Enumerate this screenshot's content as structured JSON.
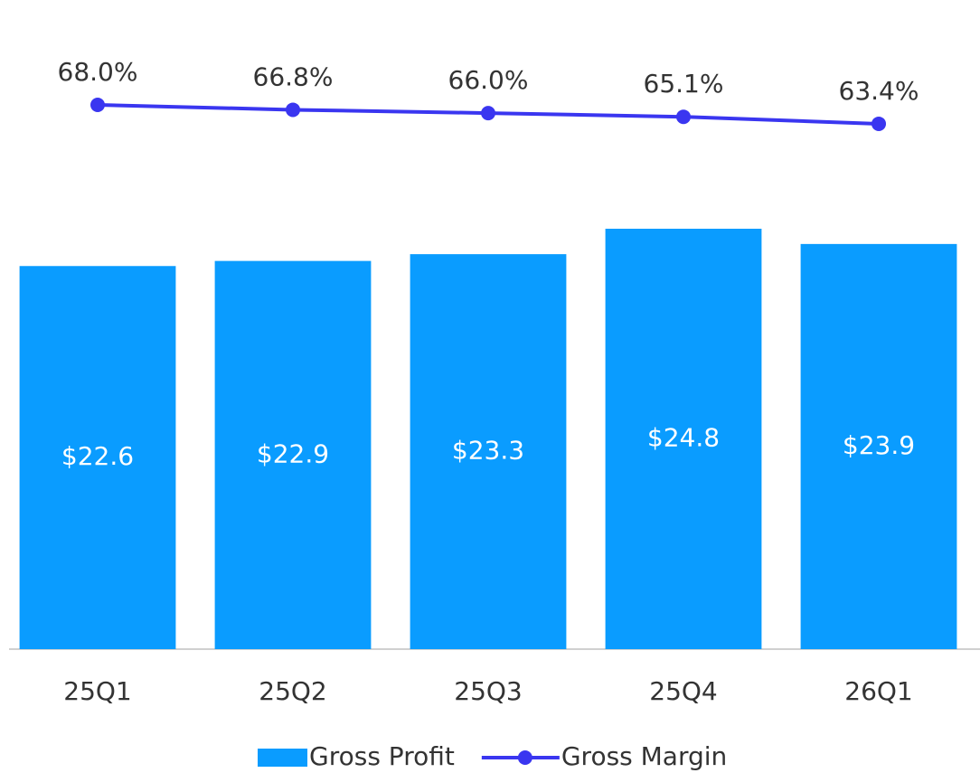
{
  "chart_data": {
    "type": "bar+line",
    "categories": [
      "25Q1",
      "25Q2",
      "25Q3",
      "25Q4",
      "26Q1"
    ],
    "series": [
      {
        "name": "Gross Profit",
        "type": "bar",
        "color": "#0a9cff",
        "values": [
          22.6,
          22.9,
          23.3,
          24.8,
          23.9
        ],
        "value_labels": [
          "$22.6",
          "$22.9",
          "$23.3",
          "$24.8",
          "$23.9"
        ]
      },
      {
        "name": "Gross Margin",
        "type": "line",
        "axis": "y2",
        "color": "#3a36f0",
        "values": [
          68.0,
          66.8,
          66.0,
          65.1,
          63.4
        ],
        "value_labels": [
          "68.0%",
          "66.8%",
          "66.0%",
          "65.1%",
          "63.4%"
        ]
      }
    ],
    "ylim": [
      0,
      36
    ],
    "y2lim": [
      -64,
      84
    ],
    "legend": "bottom"
  }
}
